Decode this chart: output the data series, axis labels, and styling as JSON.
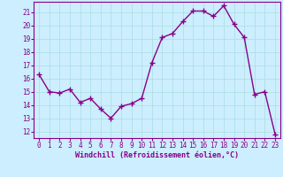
{
  "x": [
    0,
    1,
    2,
    3,
    4,
    5,
    6,
    7,
    8,
    9,
    10,
    11,
    12,
    13,
    14,
    15,
    16,
    17,
    18,
    19,
    20,
    21,
    22,
    23
  ],
  "y": [
    16.3,
    15.0,
    14.9,
    15.2,
    14.2,
    14.5,
    13.7,
    13.0,
    13.9,
    14.1,
    14.5,
    17.2,
    19.1,
    19.4,
    20.3,
    21.1,
    21.1,
    20.7,
    21.5,
    20.1,
    19.1,
    14.8,
    15.0,
    11.8
  ],
  "line_color": "#880088",
  "marker": "+",
  "marker_size": 4,
  "marker_lw": 1.0,
  "bg_color": "#cceeff",
  "grid_color": "#aadddd",
  "xlabel": "Windchill (Refroidissement éolien,°C)",
  "xlabel_color": "#880088",
  "ylabel_ticks": [
    12,
    13,
    14,
    15,
    16,
    17,
    18,
    19,
    20,
    21
  ],
  "xlim": [
    -0.5,
    23.5
  ],
  "ylim": [
    11.5,
    21.8
  ],
  "xticks": [
    0,
    1,
    2,
    3,
    4,
    5,
    6,
    7,
    8,
    9,
    10,
    11,
    12,
    13,
    14,
    15,
    16,
    17,
    18,
    19,
    20,
    21,
    22,
    23
  ],
  "tick_color": "#880088",
  "spine_color": "#880088",
  "tick_fontsize": 5.5,
  "xlabel_fontsize": 6.0,
  "linewidth": 1.0
}
